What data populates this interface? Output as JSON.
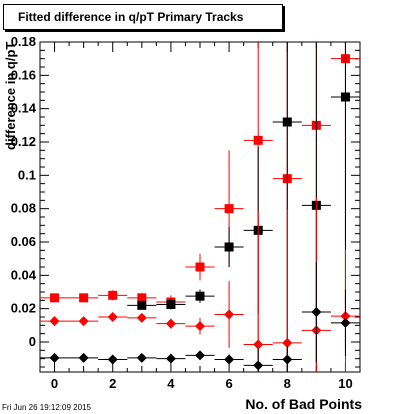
{
  "title": "Fitted difference in q/pT Primary Tracks",
  "timestamp": "Fri Jun 26 19:12:09 2015",
  "chart_data": {
    "type": "scatter",
    "title": "Fitted difference in q/pT Primary Tracks",
    "xlabel": "No. of Bad Points",
    "ylabel": "difference in q/pT",
    "xlim": [
      -0.5,
      10.5
    ],
    "ylim": [
      -0.018,
      0.18
    ],
    "x_ticks": [
      0,
      2,
      4,
      6,
      8,
      10
    ],
    "y_ticks": [
      0,
      0.02,
      0.04,
      0.06,
      0.08,
      0.1,
      0.12,
      0.14,
      0.16,
      0.18
    ],
    "x_tick_labels": [
      "0",
      "2",
      "4",
      "6",
      "8",
      "10"
    ],
    "y_tick_labels": [
      "0",
      "0.02",
      "0.04",
      "0.06",
      "0.08",
      "0.1",
      "0.12",
      "0.14",
      "0.16",
      "0.18"
    ],
    "grid": false,
    "series": [
      {
        "marker": "square",
        "color": "#ff0000",
        "points": [
          {
            "x": 0,
            "y": 0.0265,
            "err": 0.002
          },
          {
            "x": 1,
            "y": 0.0265,
            "err": 0.002
          },
          {
            "x": 2,
            "y": 0.028,
            "err": 0.003
          },
          {
            "x": 3,
            "y": 0.0265,
            "err": 0.003
          },
          {
            "x": 4,
            "y": 0.024,
            "err": 0.004
          },
          {
            "x": 5,
            "y": 0.045,
            "err": 0.008
          },
          {
            "x": 6,
            "y": 0.08,
            "err": 0.035
          },
          {
            "x": 7,
            "y": 0.121,
            "err": 0.15
          },
          {
            "x": 8,
            "y": 0.098,
            "err": 0.15
          },
          {
            "x": 9,
            "y": 0.13,
            "err": 0.15
          },
          {
            "x": 10,
            "y": 0.17,
            "err": 0.15
          }
        ]
      },
      {
        "marker": "square",
        "color": "#000000",
        "points": [
          {
            "x": 3,
            "y": 0.022,
            "err": 0.002
          },
          {
            "x": 4,
            "y": 0.0225,
            "err": 0.003
          },
          {
            "x": 5,
            "y": 0.0275,
            "err": 0.004
          },
          {
            "x": 6,
            "y": 0.057,
            "err": 0.012
          },
          {
            "x": 7,
            "y": 0.067,
            "err": 0.05
          },
          {
            "x": 8,
            "y": 0.132,
            "err": 0.15
          },
          {
            "x": 9,
            "y": 0.082,
            "err": 0.15
          },
          {
            "x": 10,
            "y": 0.147,
            "err": 0.15
          }
        ]
      },
      {
        "marker": "diamond",
        "color": "#ff0000",
        "points": [
          {
            "x": 0,
            "y": 0.0125,
            "err": 0.002
          },
          {
            "x": 1,
            "y": 0.0125,
            "err": 0.002
          },
          {
            "x": 2,
            "y": 0.015,
            "err": 0.002
          },
          {
            "x": 3,
            "y": 0.0145,
            "err": 0.002
          },
          {
            "x": 4,
            "y": 0.011,
            "err": 0.003
          },
          {
            "x": 5,
            "y": 0.0095,
            "err": 0.005
          },
          {
            "x": 6,
            "y": 0.0165,
            "err": 0.02
          },
          {
            "x": 7,
            "y": -0.0015,
            "err": 0.08
          },
          {
            "x": 8,
            "y": -0.0005,
            "err": 0.08
          },
          {
            "x": 9,
            "y": 0.007,
            "err": 0.08
          },
          {
            "x": 10,
            "y": 0.0155,
            "err": 0.04
          }
        ]
      },
      {
        "marker": "diamond",
        "color": "#000000",
        "points": [
          {
            "x": 0,
            "y": -0.0095,
            "err": 0.0
          },
          {
            "x": 1,
            "y": -0.0095,
            "err": 0.0
          },
          {
            "x": 2,
            "y": -0.0105,
            "err": 0.0
          },
          {
            "x": 3,
            "y": -0.0095,
            "err": 0.0
          },
          {
            "x": 4,
            "y": -0.01,
            "err": 0.0
          },
          {
            "x": 5,
            "y": -0.008,
            "err": 0.0
          },
          {
            "x": 6,
            "y": -0.0105,
            "err": 0.003
          },
          {
            "x": 7,
            "y": -0.014,
            "err": 0.01
          },
          {
            "x": 8,
            "y": -0.0105,
            "err": 0.008
          },
          {
            "x": 9,
            "y": 0.018,
            "err": 0.03
          },
          {
            "x": 10,
            "y": 0.0115,
            "err": 0.02
          }
        ]
      }
    ]
  }
}
